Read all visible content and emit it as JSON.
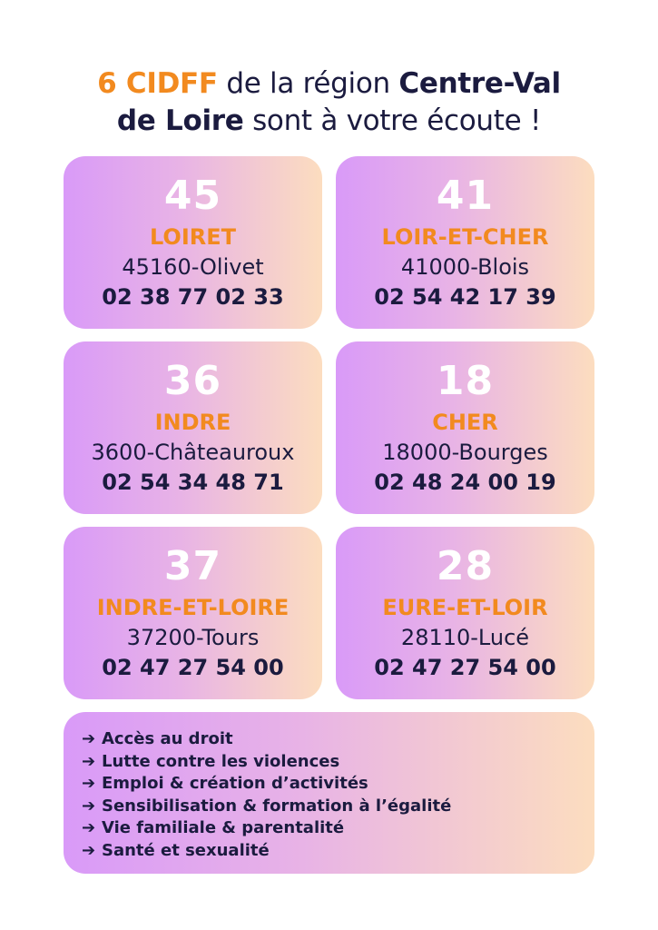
{
  "headline": {
    "part1": "6 CIDFF",
    "part2": " de la région ",
    "part3": "Centre-Val",
    "part4": "de Loire",
    "part5": " sont à votre écoute !"
  },
  "colors": {
    "accent": "#f28a1f",
    "text": "#1b1b3f",
    "card_gradient_start": "#d99af8",
    "card_gradient_end": "#fcddbf"
  },
  "offices": [
    {
      "number": "45",
      "department": "LOIRET",
      "city": "45160-Olivet",
      "phone": "02 38 77 02 33"
    },
    {
      "number": "41",
      "department": "LOIR-ET-CHER",
      "city": "41000-Blois",
      "phone": "02 54 42 17 39"
    },
    {
      "number": "36",
      "department": "INDRE",
      "city": "3600-Châteauroux",
      "phone": "02 54 34 48 71"
    },
    {
      "number": "18",
      "department": "CHER",
      "city": "18000-Bourges",
      "phone": "02 48 24 00 19"
    },
    {
      "number": "37",
      "department": "INDRE-ET-LOIRE",
      "city": "37200-Tours",
      "phone": "02 47 27 54 00"
    },
    {
      "number": "28",
      "department": "EURE-ET-LOIR",
      "city": "28110-Lucé",
      "phone": "02 47 27 54 00"
    }
  ],
  "services": {
    "arrow_glyph": "➔",
    "items": [
      "Accès au droit",
      "Lutte contre les violences",
      "Emploi & création d’activités",
      "Sensibilisation & formation à l’égalité",
      "Vie familiale & parentalité",
      "Santé et sexualité"
    ]
  }
}
